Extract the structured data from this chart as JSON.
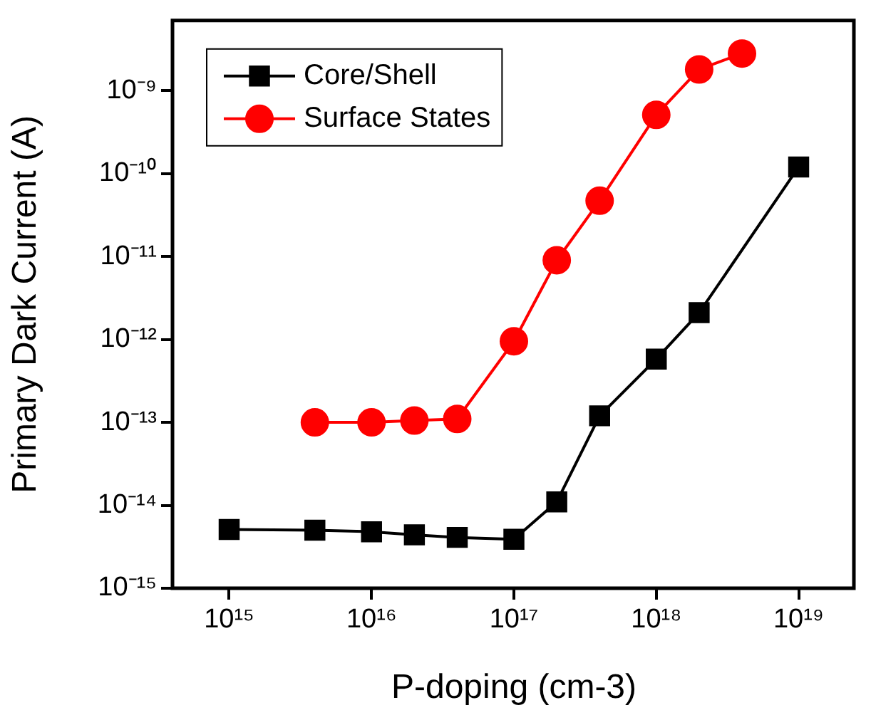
{
  "chart_data": {
    "type": "line",
    "xlabel": "P-doping (cm-3)",
    "ylabel": "Primary Dark Current (A)",
    "log": "xy",
    "grid": false,
    "legend": "top left",
    "xlim": [
      400000000000000.0,
      2.5e+19
    ],
    "xticks": [
      {
        "value": 1000000000000000.0,
        "label": "10¹⁵"
      },
      {
        "value": 1e+16,
        "label": "10¹⁶"
      },
      {
        "value": 1e+17,
        "label": "10¹⁷"
      },
      {
        "value": 1e+18,
        "label": "10¹⁸"
      },
      {
        "value": 1e+19,
        "label": "10¹⁹"
      }
    ],
    "ylim": [
      1e-15,
      7e-09
    ],
    "yticks": [
      {
        "value": 1e-15,
        "label": "10⁻¹⁵"
      },
      {
        "value": 1e-14,
        "label": "10⁻¹⁴"
      },
      {
        "value": 1e-13,
        "label": "10⁻¹³"
      },
      {
        "value": 1e-12,
        "label": "10⁻¹²"
      },
      {
        "value": 1e-11,
        "label": "10⁻¹¹"
      },
      {
        "value": 1e-10,
        "label": "10⁻¹⁰"
      },
      {
        "value": 1e-09,
        "label": "10⁻⁹"
      }
    ],
    "series": [
      {
        "name": "Core/Shell",
        "color": "#000000",
        "marker": "square",
        "x": [
          1000000000000000.0,
          4000000000000000.0,
          1e+16,
          2e+16,
          4e+16,
          1e+17,
          2e+17,
          4e+17,
          1e+18,
          2e+18,
          1e+19
        ],
        "values": [
          5.1e-15,
          5e-15,
          4.8e-15,
          4.4e-15,
          4.1e-15,
          3.9e-15,
          1.1e-14,
          1.2e-13,
          5.8e-13,
          2.1e-12,
          1.2e-10
        ]
      },
      {
        "name": "Surface States",
        "color": "#ff0000",
        "marker": "circle",
        "x": [
          4000000000000000.0,
          1e+16,
          2e+16,
          4e+16,
          1e+17,
          2e+17,
          4e+17,
          1e+18,
          2e+18,
          4e+18
        ],
        "values": [
          1e-13,
          1e-13,
          1.05e-13,
          1.1e-13,
          9.5e-13,
          9e-12,
          4.7e-11,
          5.1e-10,
          1.8e-09,
          2.8e-09
        ]
      }
    ]
  }
}
